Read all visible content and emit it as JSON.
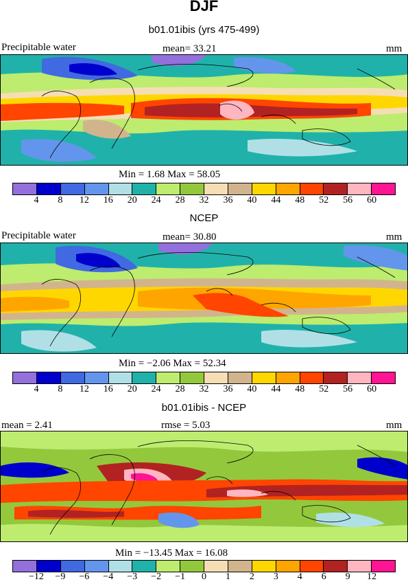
{
  "title": "DJF",
  "panels": [
    {
      "subtitle": "b01.01ibis (yrs 475-499)",
      "left_label": "Precipitable water",
      "center_label": "mean=  33.21",
      "right_label": "mm",
      "stats": "Min =    1.68  Max =   58.05",
      "colorbar": {
        "colors": [
          "#9370db",
          "#0000cd",
          "#4169e1",
          "#6495ed",
          "#b0e0e6",
          "#20b2aa",
          "#bdec6f",
          "#93c83c",
          "#f5deb3",
          "#d2b48c",
          "#ffd700",
          "#ffa500",
          "#ff4500",
          "#b22222",
          "#ffb6c1",
          "#ff1493"
        ],
        "labels": [
          "4",
          "8",
          "12",
          "16",
          "20",
          "24",
          "28",
          "32",
          "36",
          "40",
          "44",
          "48",
          "52",
          "56",
          "60"
        ]
      }
    },
    {
      "subtitle": "NCEP",
      "left_label": "Precipitable water",
      "center_label": "mean=  30.80",
      "right_label": "mm",
      "stats": "Min =  −2.06  Max =   52.34",
      "colorbar": {
        "colors": [
          "#9370db",
          "#0000cd",
          "#4169e1",
          "#6495ed",
          "#b0e0e6",
          "#20b2aa",
          "#bdec6f",
          "#93c83c",
          "#f5deb3",
          "#d2b48c",
          "#ffd700",
          "#ffa500",
          "#ff4500",
          "#b22222",
          "#ffb6c1",
          "#ff1493"
        ],
        "labels": [
          "4",
          "8",
          "12",
          "16",
          "20",
          "24",
          "28",
          "32",
          "36",
          "40",
          "44",
          "48",
          "52",
          "56",
          "60"
        ]
      }
    },
    {
      "subtitle": "b01.01ibis - NCEP",
      "left_label": "mean =    2.41",
      "center_label": "rmse =    5.03",
      "right_label": "mm",
      "stats": "Min = −13.45  Max =   16.08",
      "colorbar": {
        "colors": [
          "#9370db",
          "#0000cd",
          "#4169e1",
          "#6495ed",
          "#b0e0e6",
          "#20b2aa",
          "#bdec6f",
          "#93c83c",
          "#f5deb3",
          "#d2b48c",
          "#ffd700",
          "#ffa500",
          "#ff4500",
          "#b22222",
          "#ffb6c1",
          "#ff1493"
        ],
        "labels": [
          "−12",
          "−9",
          "−6",
          "−4",
          "−3",
          "−2",
          "−1",
          "0",
          "1",
          "2",
          "3",
          "4",
          "6",
          "9",
          "12"
        ]
      }
    }
  ]
}
